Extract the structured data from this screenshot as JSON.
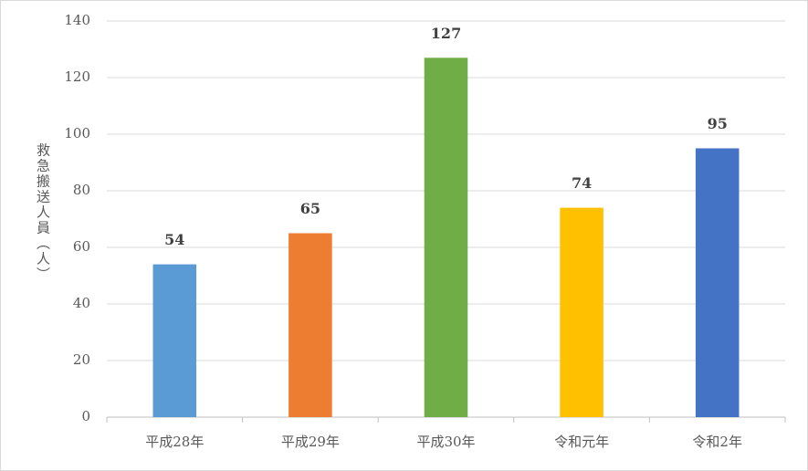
{
  "chart_data": {
    "type": "bar",
    "y_label": "救急搬送人員（人）",
    "categories": [
      "平成28年",
      "平成29年",
      "平成30年",
      "令和元年",
      "令和2年"
    ],
    "values": [
      54,
      65,
      127,
      74,
      95
    ],
    "colors": [
      "#5b9bd5",
      "#ed7d31",
      "#70ad47",
      "#ffc000",
      "#4472c4"
    ],
    "ylim": [
      0,
      140
    ],
    "yticks": [
      0,
      20,
      40,
      60,
      80,
      100,
      120,
      140
    ],
    "grid": true
  }
}
